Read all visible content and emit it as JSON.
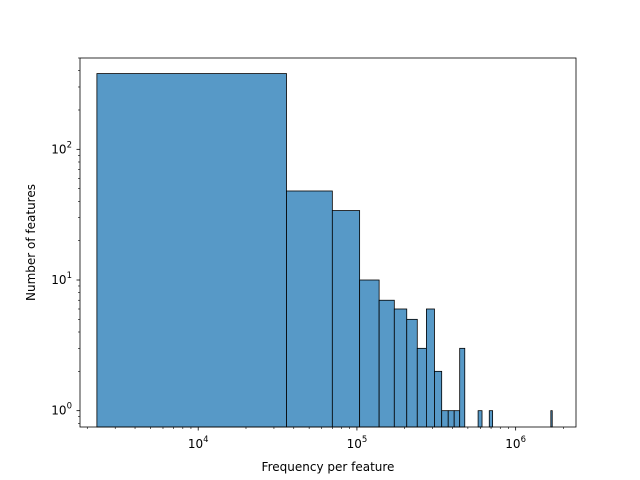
{
  "chart_data": {
    "type": "bar",
    "title": "",
    "xlabel": "Frequency per feature",
    "ylabel": "Number of features",
    "xscale": "log",
    "yscale": "log",
    "xlim": [
      1800,
      2400000
    ],
    "ylim": [
      0.75,
      500
    ],
    "x_ticks": [
      {
        "value": 10000,
        "base": "10",
        "exp": "4"
      },
      {
        "value": 100000,
        "base": "10",
        "exp": "5"
      },
      {
        "value": 1000000,
        "base": "10",
        "exp": "6"
      }
    ],
    "y_ticks": [
      {
        "value": 1,
        "base": "10",
        "exp": "0"
      },
      {
        "value": 10,
        "base": "10",
        "exp": "1"
      },
      {
        "value": 100,
        "base": "10",
        "exp": "2"
      }
    ],
    "bar_color": "#5799c7",
    "edge_color": "#000000",
    "grid": false,
    "bins": [
      {
        "x0": 2300,
        "x1": 36000,
        "count": 380
      },
      {
        "x0": 36000,
        "x1": 70000,
        "count": 48
      },
      {
        "x0": 70000,
        "x1": 104000,
        "count": 34
      },
      {
        "x0": 104000,
        "x1": 138000,
        "count": 10
      },
      {
        "x0": 138000,
        "x1": 172000,
        "count": 7
      },
      {
        "x0": 172000,
        "x1": 206000,
        "count": 6
      },
      {
        "x0": 206000,
        "x1": 240000,
        "count": 5
      },
      {
        "x0": 240000,
        "x1": 274000,
        "count": 3
      },
      {
        "x0": 274000,
        "x1": 308000,
        "count": 6
      },
      {
        "x0": 308000,
        "x1": 342000,
        "count": 2
      },
      {
        "x0": 342000,
        "x1": 376000,
        "count": 1
      },
      {
        "x0": 376000,
        "x1": 410000,
        "count": 1
      },
      {
        "x0": 410000,
        "x1": 444000,
        "count": 1
      },
      {
        "x0": 444000,
        "x1": 478000,
        "count": 3
      },
      {
        "x0": 580000,
        "x1": 614000,
        "count": 1
      },
      {
        "x0": 682000,
        "x1": 716000,
        "count": 1
      },
      {
        "x0": 1666000,
        "x1": 1700000,
        "count": 1
      }
    ]
  }
}
